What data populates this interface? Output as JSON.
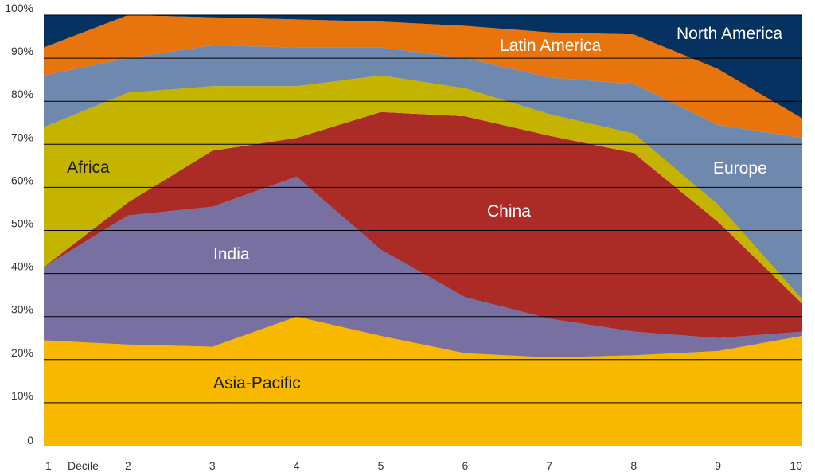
{
  "chart_data": {
    "type": "area",
    "stacked": true,
    "normalized": true,
    "x": [
      1,
      2,
      3,
      4,
      5,
      6,
      7,
      8,
      9,
      10
    ],
    "xlabel": "Decile",
    "yticks": [
      "0",
      "10%",
      "20%",
      "30%",
      "40%",
      "50%",
      "60%",
      "70%",
      "80%",
      "90%",
      "100%"
    ],
    "ylim": [
      0,
      100
    ],
    "grid": true,
    "series": [
      {
        "name": "Asia-Pacific",
        "color": "#F9B800",
        "label_color": "dark",
        "values": [
          24.5,
          23.5,
          23,
          30,
          25.5,
          21.5,
          20.5,
          21,
          22,
          25.5
        ]
      },
      {
        "name": "India",
        "color": "#7870A0",
        "label_color": "light",
        "values": [
          17,
          30,
          32.5,
          32.5,
          20,
          13,
          9,
          5.5,
          3,
          1
        ]
      },
      {
        "name": "China",
        "color": "#AB2B27",
        "label_color": "light",
        "values": [
          0,
          3,
          13,
          9,
          32,
          42,
          42.5,
          41.5,
          27,
          6.5
        ]
      },
      {
        "name": "Africa",
        "color": "#C4B400",
        "label_color": "dark",
        "values": [
          32.5,
          25.5,
          15,
          12,
          8.5,
          6.5,
          5,
          4.5,
          4,
          1
        ]
      },
      {
        "name": "Europe",
        "color": "#6F88AE",
        "label_color": "light",
        "values": [
          12,
          8,
          9.5,
          9,
          6.5,
          7,
          8.5,
          11.5,
          18.5,
          37.5
        ]
      },
      {
        "name": "Latin America",
        "color": "#E8740D",
        "label_color": "light",
        "values": [
          6.5,
          10,
          6.5,
          6.5,
          6,
          7.5,
          10.5,
          11.5,
          13,
          4.5
        ]
      },
      {
        "name": "North America",
        "color": "#053260",
        "label_color": "light",
        "values": [
          7.5,
          0,
          0.5,
          1,
          1.5,
          2.5,
          4,
          4.5,
          12.5,
          24
        ]
      }
    ]
  }
}
